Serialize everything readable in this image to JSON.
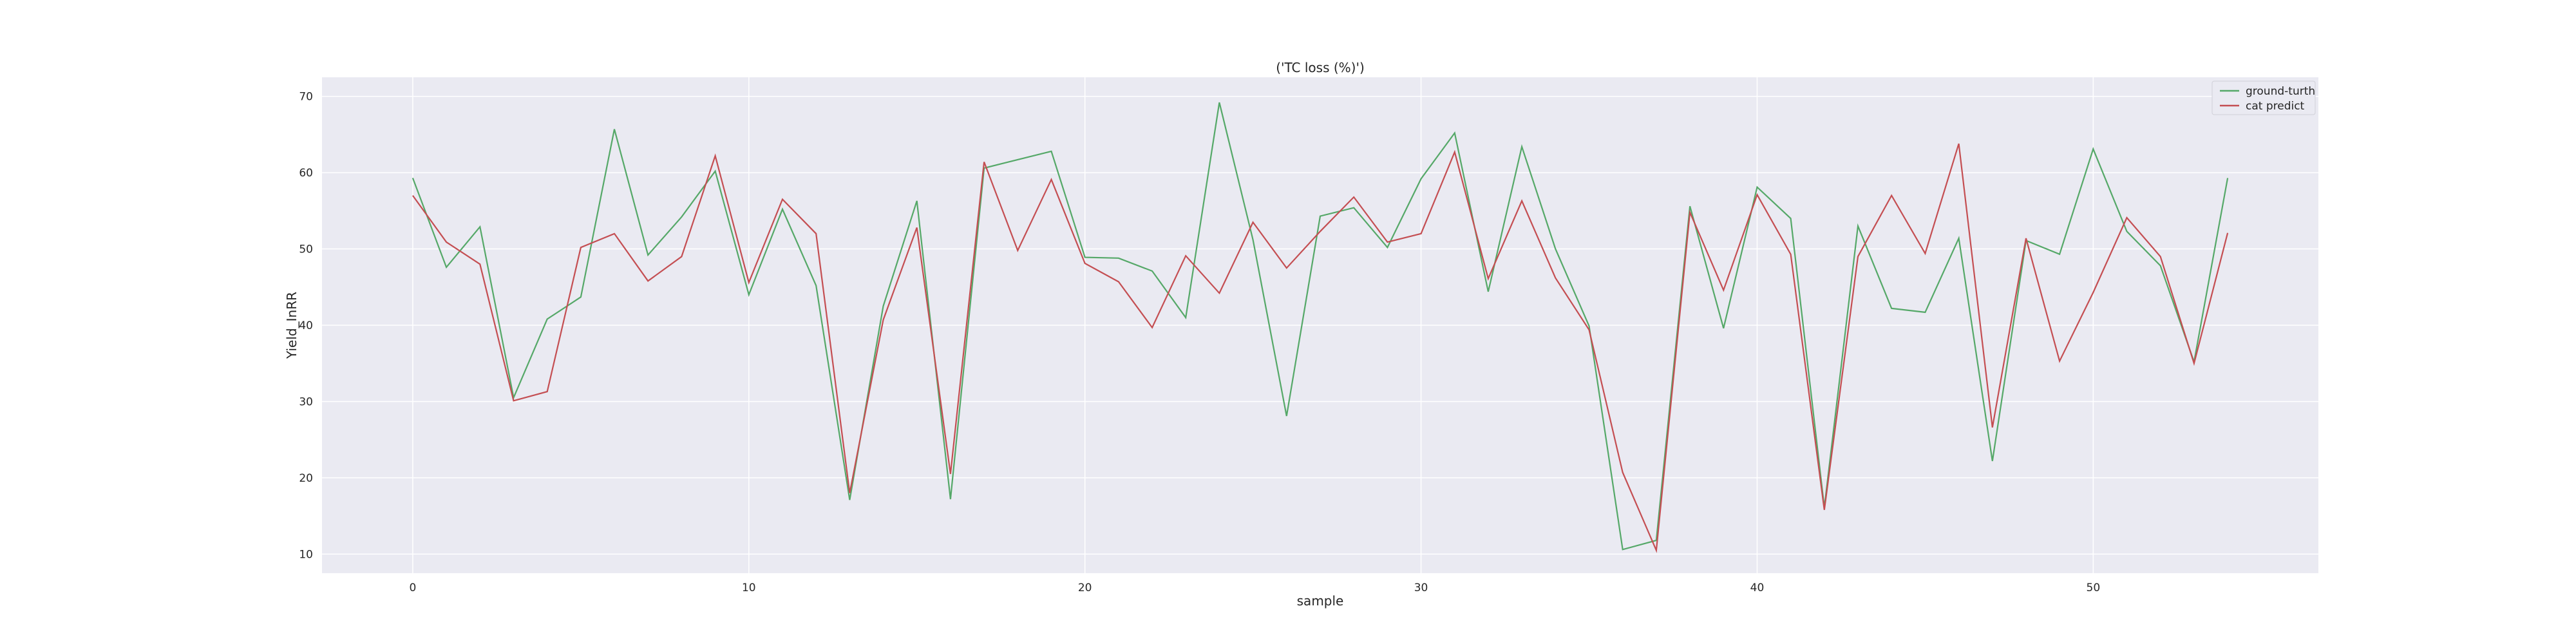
{
  "chart_data": {
    "type": "line",
    "title": "('TC loss (%)')",
    "xlabel": "sample",
    "ylabel": "Yield_InRR",
    "xlim": [
      -2.7,
      56.7
    ],
    "ylim": [
      7.5,
      72.5
    ],
    "xticks": [
      0,
      10,
      20,
      30,
      40,
      50
    ],
    "yticks": [
      10,
      20,
      30,
      40,
      50,
      60,
      70
    ],
    "grid": true,
    "legend_position": "top-right",
    "background": "#eaeaf2",
    "x": [
      0,
      1,
      2,
      3,
      4,
      5,
      6,
      7,
      8,
      9,
      10,
      11,
      12,
      13,
      14,
      15,
      16,
      17,
      18,
      19,
      20,
      21,
      22,
      23,
      24,
      25,
      26,
      27,
      28,
      29,
      30,
      31,
      32,
      33,
      34,
      35,
      36,
      37,
      38,
      39,
      40,
      41,
      42,
      43,
      44,
      45,
      46,
      47,
      48,
      49,
      50,
      51,
      52,
      53,
      54
    ],
    "series": [
      {
        "name": "ground-turth",
        "color": "#55a868",
        "values": [
          59.3,
          47.6,
          52.9,
          30.5,
          40.8,
          43.7,
          65.7,
          49.2,
          54.2,
          60.2,
          44,
          55.2,
          45.2,
          17.1,
          42.5,
          56.3,
          17.2,
          60.6,
          61.7,
          62.8,
          48.9,
          48.8,
          47.1,
          41,
          69.2,
          51.2,
          28.1,
          54.3,
          55.4,
          50.2,
          59.2,
          65.2,
          44.4,
          63.4,
          50,
          39.9,
          10.6,
          11.8,
          55.6,
          39.6,
          58.1,
          54,
          16.1,
          53,
          42.2,
          41.7,
          51.4,
          22.2,
          51.1,
          49.3,
          63.1,
          52.3,
          47.8,
          35.2,
          59.3
        ]
      },
      {
        "name": "cat predict",
        "color": "#c44e52",
        "values": [
          57,
          50.9,
          48,
          30.1,
          31.3,
          50.2,
          52,
          45.8,
          49,
          62.2,
          45.6,
          56.5,
          52,
          18,
          40.7,
          52.8,
          20.5,
          61.4,
          49.8,
          59.1,
          48.1,
          45.7,
          39.7,
          49.1,
          44.2,
          53.5,
          47.5,
          52.3,
          56.8,
          50.9,
          52,
          62.7,
          46.1,
          56.3,
          46.2,
          39.4,
          20.7,
          10.5,
          54.8,
          44.6,
          57.1,
          49.3,
          15.8,
          49,
          57,
          49.4,
          63.8,
          26.6,
          51.4,
          35.3,
          44.3,
          54.1,
          49,
          35,
          52.1
        ]
      }
    ]
  }
}
